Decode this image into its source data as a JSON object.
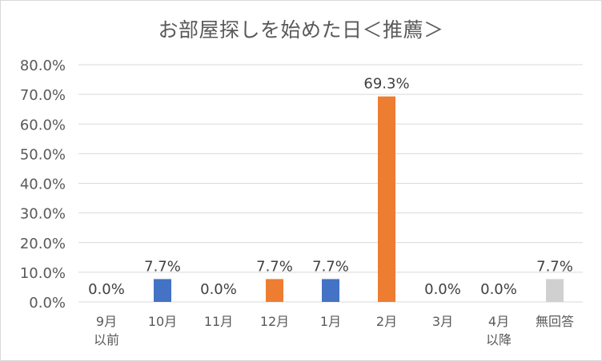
{
  "chart_data": {
    "type": "bar",
    "title": "お部屋探しを始めた日＜推薦＞",
    "categories": [
      [
        "9月",
        "以前"
      ],
      [
        "10月"
      ],
      [
        "11月"
      ],
      [
        "12月"
      ],
      [
        "1月"
      ],
      [
        "2月"
      ],
      [
        "3月"
      ],
      [
        "4月",
        "以降"
      ],
      [
        "無回答"
      ]
    ],
    "values": [
      0.0,
      7.7,
      0.0,
      7.7,
      7.7,
      69.3,
      0.0,
      0.0,
      7.7
    ],
    "data_labels": [
      "0.0%",
      "7.7%",
      "0.0%",
      "7.7%",
      "7.7%",
      "69.3%",
      "0.0%",
      "0.0%",
      "7.7%"
    ],
    "bar_colors": [
      "#4472c4",
      "#4472c4",
      "#4472c4",
      "#ed7d31",
      "#4472c4",
      "#ed7d31",
      "#4472c4",
      "#4472c4",
      "#d0d0d0"
    ],
    "ylim": [
      0,
      80
    ],
    "yticks": [
      "0.0%",
      "10.0%",
      "20.0%",
      "30.0%",
      "40.0%",
      "50.0%",
      "60.0%",
      "70.0%",
      "80.0%"
    ],
    "grid": true,
    "legend": "none",
    "colors": {
      "gridline": "#d9d9d9",
      "text": "#595959",
      "label": "#404040"
    }
  }
}
